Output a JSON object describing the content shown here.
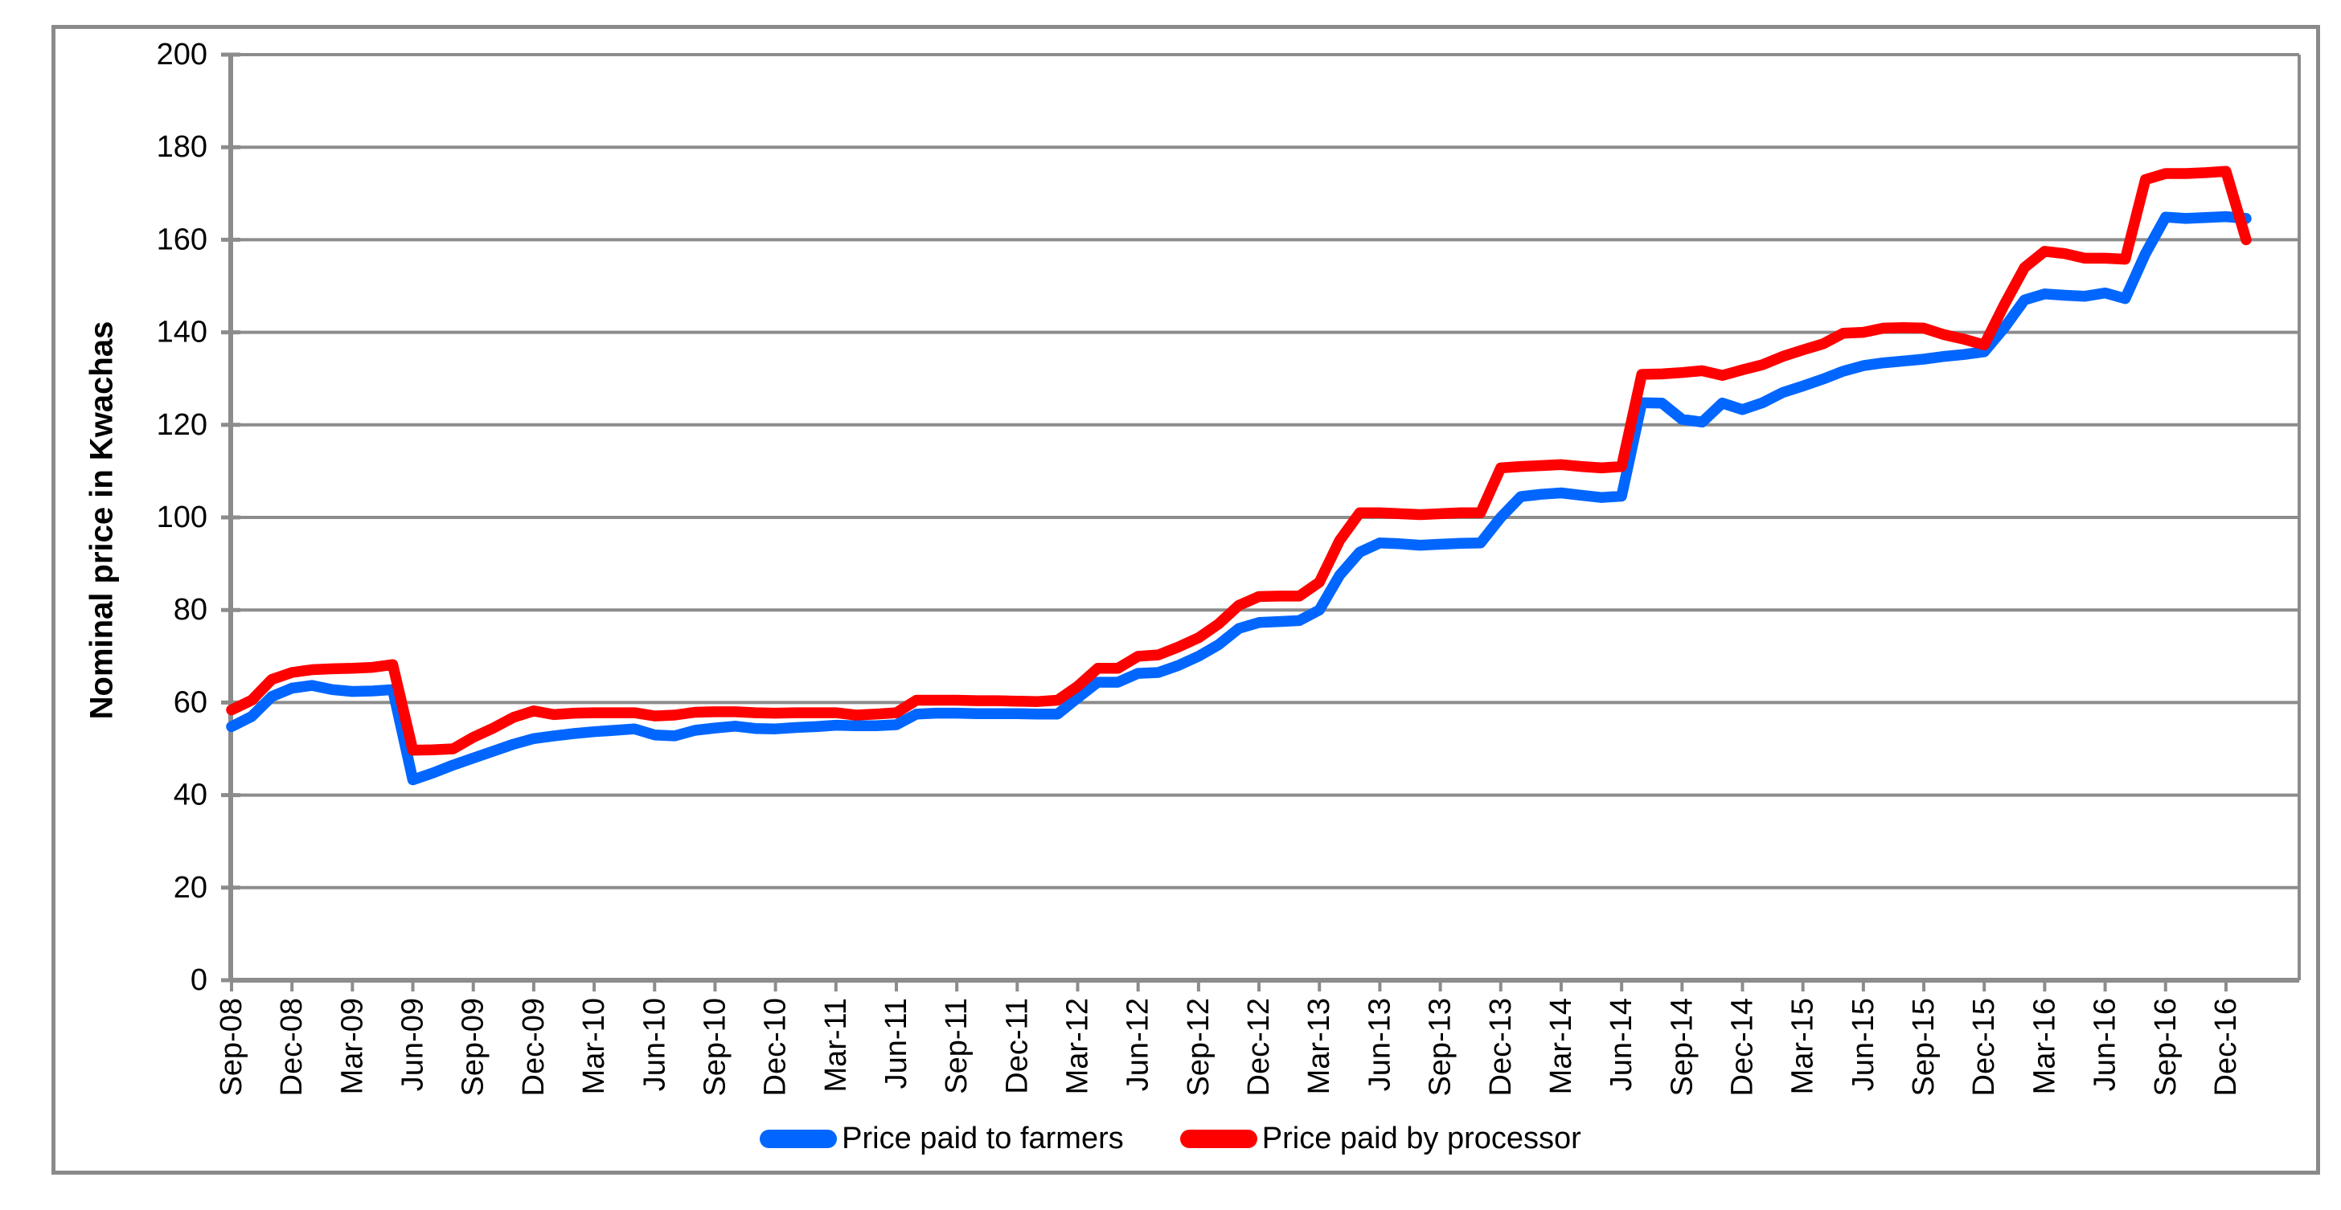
{
  "chart_data": {
    "type": "line",
    "title": "",
    "xlabel": "",
    "ylabel": "Nominal price in Kwachas",
    "ylim": [
      0,
      200
    ],
    "ytick_step": 20,
    "ytick_labels": [
      "0",
      "20",
      "40",
      "60",
      "80",
      "100",
      "120",
      "140",
      "160",
      "180",
      "200"
    ],
    "grid": true,
    "legend_position": "bottom",
    "x_tick_every": 3,
    "x_tick_labels": [
      "Sep-08",
      "Dec-08",
      "Mar-09",
      "Jun-09",
      "Sep-09",
      "Dec-09",
      "Mar-10",
      "Jun-10",
      "Sep-10",
      "Dec-10",
      "Mar-11",
      "Jun-11",
      "Sep-11",
      "Dec-11",
      "Mar-12",
      "Jun-12",
      "Sep-12",
      "Dec-12",
      "Mar-13",
      "Jun-13",
      "Sep-13",
      "Dec-13",
      "Mar-14",
      "Jun-14",
      "Sep-14",
      "Dec-14",
      "Mar-15",
      "Jun-15",
      "Sep-15",
      "Dec-15",
      "Mar-16",
      "Jun-16",
      "Sep-16",
      "Dec-16"
    ],
    "categories": [
      "Sep-08",
      "Oct-08",
      "Nov-08",
      "Dec-08",
      "Jan-09",
      "Feb-09",
      "Mar-09",
      "Apr-09",
      "May-09",
      "Jun-09",
      "Jul-09",
      "Aug-09",
      "Sep-09",
      "Oct-09",
      "Nov-09",
      "Dec-09",
      "Jan-10",
      "Feb-10",
      "Mar-10",
      "Apr-10",
      "May-10",
      "Jun-10",
      "Jul-10",
      "Aug-10",
      "Sep-10",
      "Oct-10",
      "Nov-10",
      "Dec-10",
      "Jan-11",
      "Feb-11",
      "Mar-11",
      "Apr-11",
      "May-11",
      "Jun-11",
      "Jul-11",
      "Aug-11",
      "Sep-11",
      "Oct-11",
      "Nov-11",
      "Dec-11",
      "Jan-12",
      "Feb-12",
      "Mar-12",
      "Apr-12",
      "May-12",
      "Jun-12",
      "Jul-12",
      "Aug-12",
      "Sep-12",
      "Oct-12",
      "Nov-12",
      "Dec-12",
      "Jan-13",
      "Feb-13",
      "Mar-13",
      "Apr-13",
      "May-13",
      "Jun-13",
      "Jul-13",
      "Aug-13",
      "Sep-13",
      "Oct-13",
      "Nov-13",
      "Dec-13",
      "Jan-14",
      "Feb-14",
      "Mar-14",
      "Apr-14",
      "May-14",
      "Jun-14",
      "Jul-14",
      "Aug-14",
      "Sep-14",
      "Oct-14",
      "Nov-14",
      "Dec-14",
      "Jan-15",
      "Feb-15",
      "Mar-15",
      "Apr-15",
      "May-15",
      "Jun-15",
      "Jul-15",
      "Aug-15",
      "Sep-15",
      "Oct-15",
      "Nov-15",
      "Dec-15",
      "Jan-16",
      "Feb-16",
      "Mar-16",
      "Apr-16",
      "May-16",
      "Jun-16",
      "Jul-16",
      "Aug-16",
      "Sep-16",
      "Oct-16",
      "Nov-16",
      "Dec-16",
      "Jan-17"
    ],
    "series": [
      {
        "name": "Price paid to farmers",
        "color": "#0066FF",
        "values": [
          54.8,
          57,
          61.3,
          63.1,
          63.7,
          62.8,
          62.4,
          62.5,
          62.8,
          43.3,
          44.8,
          46.5,
          48,
          49.5,
          51,
          52.2,
          52.8,
          53.3,
          53.7,
          54,
          54.3,
          53,
          52.8,
          54,
          54.5,
          54.9,
          54.4,
          54.3,
          54.6,
          54.8,
          55.1,
          55,
          55,
          55.2,
          57.5,
          57.7,
          57.7,
          57.6,
          57.6,
          57.6,
          57.5,
          57.5,
          61,
          64.4,
          64.4,
          66.3,
          66.5,
          68,
          70,
          72.5,
          76,
          77.3,
          77.5,
          77.7,
          80,
          87.5,
          92.5,
          94.5,
          94.3,
          94,
          94.2,
          94.4,
          94.5,
          100,
          104.5,
          105,
          105.3,
          104.8,
          104.3,
          104.6,
          124.8,
          124.7,
          121.2,
          120.6,
          124.7,
          123.3,
          124.8,
          127,
          128.4,
          129.9,
          131.6,
          132.8,
          133.4,
          133.8,
          134.2,
          134.8,
          135.2,
          135.8,
          141,
          147,
          148.3,
          148,
          147.8,
          148.5,
          147.3,
          157,
          164.9,
          164.6,
          164.8,
          165,
          164.6
        ]
      },
      {
        "name": "Price paid by processor",
        "color": "#FF0000",
        "values": [
          58.4,
          60.5,
          65,
          66.5,
          67.1,
          67.3,
          67.4,
          67.6,
          68.2,
          49.7,
          49.8,
          50,
          52.5,
          54.5,
          56.8,
          58.2,
          57.4,
          57.7,
          57.8,
          57.8,
          57.8,
          57.1,
          57.3,
          57.9,
          58,
          58,
          57.8,
          57.7,
          57.8,
          57.8,
          57.8,
          57.3,
          57.5,
          57.8,
          60.5,
          60.5,
          60.5,
          60.4,
          60.4,
          60.3,
          60.2,
          60.5,
          63.5,
          67.4,
          67.4,
          70,
          70.3,
          72,
          74,
          77,
          81,
          82.9,
          83,
          83,
          86,
          95,
          101,
          101,
          100.8,
          100.6,
          100.8,
          101,
          101,
          110.7,
          111,
          111.2,
          111.4,
          111,
          110.7,
          111,
          130.9,
          131,
          131.3,
          131.7,
          130.7,
          131.9,
          133,
          134.8,
          136.2,
          137.5,
          139.8,
          140,
          140.9,
          141,
          140.9,
          139.5,
          138.5,
          137.3,
          146,
          154,
          157.5,
          157,
          156,
          156,
          155.8,
          173,
          174.3,
          174.3,
          174.5,
          174.8,
          160
        ]
      }
    ]
  },
  "legend": {
    "items": [
      {
        "label": "Price paid to farmers",
        "color": "#0066FF"
      },
      {
        "label": "Price paid by processor",
        "color": "#FF0000"
      }
    ]
  },
  "colors": {
    "background": "#FFFFFF",
    "grid": "#8C8C8C",
    "axis": "#8C8C8C",
    "chart_border": "#8A8A8A",
    "text": "#000000"
  }
}
